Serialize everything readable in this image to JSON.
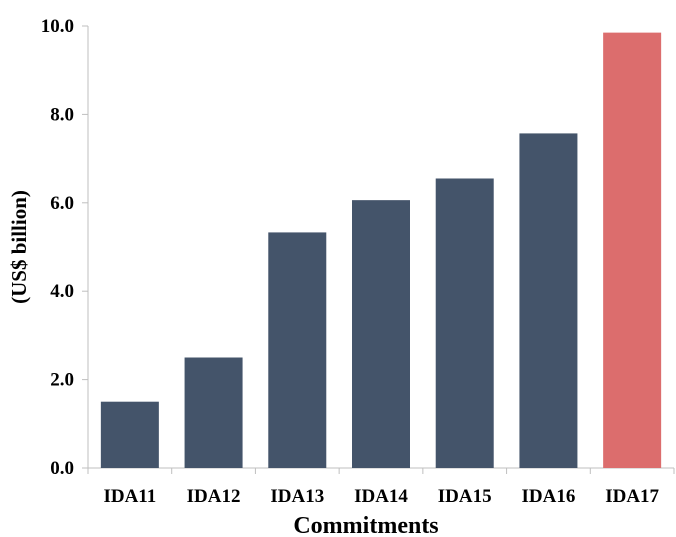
{
  "chart_data": {
    "type": "bar",
    "title": "",
    "xlabel": "Commitments",
    "ylabel": "(US$ billion)",
    "categories": [
      "IDA11",
      "IDA12",
      "IDA13",
      "IDA14",
      "IDA15",
      "IDA16",
      "IDA17"
    ],
    "values": [
      1.5,
      2.5,
      5.33,
      6.06,
      6.55,
      7.57,
      9.85
    ],
    "ylim": [
      0,
      10
    ],
    "yticks": [
      "0.0",
      "2.0",
      "4.0",
      "6.0",
      "8.0",
      "10.0"
    ],
    "ytick_values": [
      0,
      2,
      4,
      6,
      8,
      10
    ],
    "grid": false,
    "legend": "none",
    "colors": [
      "#44546a",
      "#44546a",
      "#44546a",
      "#44546a",
      "#44546a",
      "#44546a",
      "#dc6d6d"
    ]
  }
}
